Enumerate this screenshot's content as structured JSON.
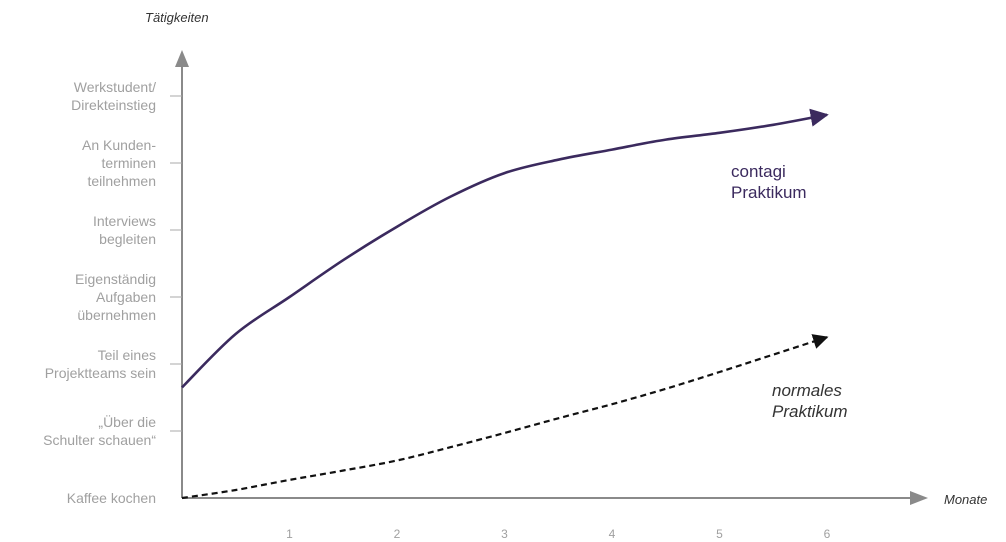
{
  "chart_data": {
    "type": "line",
    "title": "",
    "xlabel": "Monate",
    "ylabel": "Tätigkeiten",
    "x_ticks": [
      "1",
      "2",
      "3",
      "4",
      "5",
      "6"
    ],
    "xlim": [
      0,
      6.8
    ],
    "ylim": [
      0,
      6.8
    ],
    "y_categories": [
      {
        "value": 0,
        "lines": [
          "Kaffee kochen"
        ]
      },
      {
        "value": 1,
        "lines": [
          "„Über die",
          "Schulter schauen“"
        ]
      },
      {
        "value": 2,
        "lines": [
          "Teil eines",
          "Projektteams sein"
        ]
      },
      {
        "value": 3,
        "lines": [
          "Eigenständig",
          "Aufgaben",
          "übernehmen"
        ]
      },
      {
        "value": 4,
        "lines": [
          "Interviews",
          "begleiten"
        ]
      },
      {
        "value": 5,
        "lines": [
          "An Kunden-",
          "terminen",
          "teilnehmen"
        ]
      },
      {
        "value": 6,
        "lines": [
          "Werkstudent/",
          "Direkteinstieg"
        ]
      }
    ],
    "series": [
      {
        "name_lines": [
          "contagi",
          "Praktikum"
        ],
        "style": "solid",
        "color": "#3b2a5e",
        "x": [
          0,
          0.5,
          1,
          1.5,
          2,
          2.5,
          3,
          3.5,
          4,
          4.5,
          5,
          5.5,
          6
        ],
        "y": [
          1.65,
          2.45,
          3.0,
          3.55,
          4.05,
          4.5,
          4.85,
          5.05,
          5.2,
          5.35,
          5.45,
          5.57,
          5.72
        ]
      },
      {
        "name_lines": [
          "normales",
          "Praktikum"
        ],
        "style": "dashed",
        "color": "#111111",
        "x": [
          0,
          0.5,
          1,
          1.5,
          2,
          2.5,
          3,
          3.5,
          4,
          4.5,
          5,
          5.5,
          6
        ],
        "y": [
          0.0,
          0.12,
          0.27,
          0.41,
          0.56,
          0.76,
          0.97,
          1.19,
          1.4,
          1.63,
          1.88,
          2.14,
          2.4
        ]
      }
    ],
    "grid": false,
    "legend": "inline"
  }
}
